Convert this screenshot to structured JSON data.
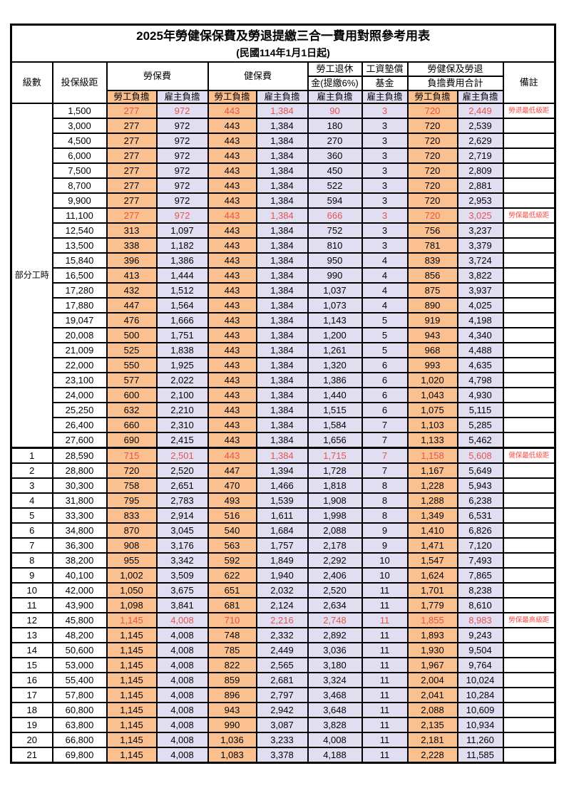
{
  "title": "2025年勞健保保費及勞退提繳三合一費用對照參考用表",
  "subtitle": "(民國114年1月1日起)",
  "colors": {
    "orange": "#FAC090",
    "lavender": "#E1DEF2",
    "red": "#E8534E",
    "remark_red": "#FF4B42",
    "border": "#000000"
  },
  "header": {
    "level": "級數",
    "bracket": "投保級距",
    "labor_insurance": "勞保費",
    "health_insurance": "健保費",
    "pension_line1": "勞工退休",
    "pension_line2": "金(提繳6%)",
    "wage_fund_line1": "工資墊償",
    "wage_fund_line2": "基金",
    "total_line1": "勞健保及勞退",
    "total_line2": "負擔費用合計",
    "remark": "備註",
    "employee_share": "勞工負擔",
    "employer_share": "雇主負擔"
  },
  "part_time_label": "部分工時",
  "rows": [
    {
      "level": null,
      "bracket": "1,500",
      "v": [
        "277",
        "972",
        "443",
        "1,384",
        "90",
        "3",
        "720",
        "2,449"
      ],
      "red": true,
      "bold": false,
      "remark": "勞退最低級距",
      "thick_top": false
    },
    {
      "level": null,
      "bracket": "3,000",
      "v": [
        "277",
        "972",
        "443",
        "1,384",
        "180",
        "3",
        "720",
        "2,539"
      ],
      "red": false,
      "bold": false,
      "remark": "",
      "thick_top": false
    },
    {
      "level": null,
      "bracket": "4,500",
      "v": [
        "277",
        "972",
        "443",
        "1,384",
        "270",
        "3",
        "720",
        "2,629"
      ],
      "red": false,
      "bold": false,
      "remark": "",
      "thick_top": false
    },
    {
      "level": null,
      "bracket": "6,000",
      "v": [
        "277",
        "972",
        "443",
        "1,384",
        "360",
        "3",
        "720",
        "2,719"
      ],
      "red": false,
      "bold": false,
      "remark": "",
      "thick_top": false
    },
    {
      "level": null,
      "bracket": "7,500",
      "v": [
        "277",
        "972",
        "443",
        "1,384",
        "450",
        "3",
        "720",
        "2,809"
      ],
      "red": false,
      "bold": false,
      "remark": "",
      "thick_top": false
    },
    {
      "level": null,
      "bracket": "8,700",
      "v": [
        "277",
        "972",
        "443",
        "1,384",
        "522",
        "3",
        "720",
        "2,881"
      ],
      "red": false,
      "bold": false,
      "remark": "",
      "thick_top": false
    },
    {
      "level": null,
      "bracket": "9,900",
      "v": [
        "277",
        "972",
        "443",
        "1,384",
        "594",
        "3",
        "720",
        "2,953"
      ],
      "red": false,
      "bold": false,
      "remark": "",
      "thick_top": false
    },
    {
      "level": null,
      "bracket": "11,100",
      "v": [
        "277",
        "972",
        "443",
        "1,384",
        "666",
        "3",
        "720",
        "3,025"
      ],
      "red": true,
      "bold": false,
      "remark": "勞保最低級距",
      "thick_top": false
    },
    {
      "level": null,
      "bracket": "12,540",
      "v": [
        "313",
        "1,097",
        "443",
        "1,384",
        "752",
        "3",
        "756",
        "3,237"
      ],
      "red": false,
      "bold": false,
      "remark": "",
      "thick_top": false
    },
    {
      "level": null,
      "bracket": "13,500",
      "v": [
        "338",
        "1,182",
        "443",
        "1,384",
        "810",
        "3",
        "781",
        "3,379"
      ],
      "red": false,
      "bold": false,
      "remark": "",
      "thick_top": false
    },
    {
      "level": null,
      "bracket": "15,840",
      "v": [
        "396",
        "1,386",
        "443",
        "1,384",
        "950",
        "4",
        "839",
        "3,724"
      ],
      "red": false,
      "bold": false,
      "remark": "",
      "thick_top": false
    },
    {
      "level": null,
      "bracket": "16,500",
      "v": [
        "413",
        "1,444",
        "443",
        "1,384",
        "990",
        "4",
        "856",
        "3,822"
      ],
      "red": false,
      "bold": false,
      "remark": "",
      "thick_top": false
    },
    {
      "level": null,
      "bracket": "17,280",
      "v": [
        "432",
        "1,512",
        "443",
        "1,384",
        "1,037",
        "4",
        "875",
        "3,937"
      ],
      "red": false,
      "bold": false,
      "remark": "",
      "thick_top": false
    },
    {
      "level": null,
      "bracket": "17,880",
      "v": [
        "447",
        "1,564",
        "443",
        "1,384",
        "1,073",
        "4",
        "890",
        "4,025"
      ],
      "red": false,
      "bold": false,
      "remark": "",
      "thick_top": false
    },
    {
      "level": null,
      "bracket": "19,047",
      "v": [
        "476",
        "1,666",
        "443",
        "1,384",
        "1,143",
        "5",
        "919",
        "4,198"
      ],
      "red": false,
      "bold": false,
      "remark": "",
      "thick_top": false
    },
    {
      "level": null,
      "bracket": "20,008",
      "v": [
        "500",
        "1,751",
        "443",
        "1,384",
        "1,200",
        "5",
        "943",
        "4,340"
      ],
      "red": false,
      "bold": false,
      "remark": "",
      "thick_top": false
    },
    {
      "level": null,
      "bracket": "21,009",
      "v": [
        "525",
        "1,838",
        "443",
        "1,384",
        "1,261",
        "5",
        "968",
        "4,488"
      ],
      "red": false,
      "bold": false,
      "remark": "",
      "thick_top": false
    },
    {
      "level": null,
      "bracket": "22,000",
      "v": [
        "550",
        "1,925",
        "443",
        "1,384",
        "1,320",
        "6",
        "993",
        "4,635"
      ],
      "red": false,
      "bold": false,
      "remark": "",
      "thick_top": false
    },
    {
      "level": null,
      "bracket": "23,100",
      "v": [
        "577",
        "2,022",
        "443",
        "1,384",
        "1,386",
        "6",
        "1,020",
        "4,798"
      ],
      "red": false,
      "bold": false,
      "remark": "",
      "thick_top": false
    },
    {
      "level": null,
      "bracket": "24,000",
      "v": [
        "600",
        "2,100",
        "443",
        "1,384",
        "1,440",
        "6",
        "1,043",
        "4,930"
      ],
      "red": false,
      "bold": false,
      "remark": "",
      "thick_top": false
    },
    {
      "level": null,
      "bracket": "25,250",
      "v": [
        "632",
        "2,210",
        "443",
        "1,384",
        "1,515",
        "6",
        "1,075",
        "5,115"
      ],
      "red": false,
      "bold": false,
      "remark": "",
      "thick_top": false
    },
    {
      "level": null,
      "bracket": "26,400",
      "v": [
        "660",
        "2,310",
        "443",
        "1,384",
        "1,584",
        "7",
        "1,103",
        "5,285"
      ],
      "red": false,
      "bold": false,
      "remark": "",
      "thick_top": false
    },
    {
      "level": null,
      "bracket": "27,600",
      "v": [
        "690",
        "2,415",
        "443",
        "1,384",
        "1,656",
        "7",
        "1,133",
        "5,462"
      ],
      "red": false,
      "bold": false,
      "remark": "",
      "thick_top": false
    },
    {
      "level": "1",
      "bracket": "28,590",
      "v": [
        "715",
        "2,501",
        "443",
        "1,384",
        "1,715",
        "7",
        "1,158",
        "5,608"
      ],
      "red": true,
      "bold": true,
      "remark": "健保最低級距",
      "thick_top": true
    },
    {
      "level": "2",
      "bracket": "28,800",
      "v": [
        "720",
        "2,520",
        "447",
        "1,394",
        "1,728",
        "7",
        "1,167",
        "5,649"
      ],
      "red": false,
      "bold": false,
      "remark": "",
      "thick_top": false
    },
    {
      "level": "3",
      "bracket": "30,300",
      "v": [
        "758",
        "2,651",
        "470",
        "1,466",
        "1,818",
        "8",
        "1,228",
        "5,943"
      ],
      "red": false,
      "bold": false,
      "remark": "",
      "thick_top": false
    },
    {
      "level": "4",
      "bracket": "31,800",
      "v": [
        "795",
        "2,783",
        "493",
        "1,539",
        "1,908",
        "8",
        "1,288",
        "6,238"
      ],
      "red": false,
      "bold": false,
      "remark": "",
      "thick_top": false
    },
    {
      "level": "5",
      "bracket": "33,300",
      "v": [
        "833",
        "2,914",
        "516",
        "1,611",
        "1,998",
        "8",
        "1,349",
        "6,531"
      ],
      "red": false,
      "bold": false,
      "remark": "",
      "thick_top": false
    },
    {
      "level": "6",
      "bracket": "34,800",
      "v": [
        "870",
        "3,045",
        "540",
        "1,684",
        "2,088",
        "9",
        "1,410",
        "6,826"
      ],
      "red": false,
      "bold": false,
      "remark": "",
      "thick_top": false
    },
    {
      "level": "7",
      "bracket": "36,300",
      "v": [
        "908",
        "3,176",
        "563",
        "1,757",
        "2,178",
        "9",
        "1,471",
        "7,120"
      ],
      "red": false,
      "bold": false,
      "remark": "",
      "thick_top": false
    },
    {
      "level": "8",
      "bracket": "38,200",
      "v": [
        "955",
        "3,342",
        "592",
        "1,849",
        "2,292",
        "10",
        "1,547",
        "7,493"
      ],
      "red": false,
      "bold": false,
      "remark": "",
      "thick_top": false
    },
    {
      "level": "9",
      "bracket": "40,100",
      "v": [
        "1,002",
        "3,509",
        "622",
        "1,940",
        "2,406",
        "10",
        "1,624",
        "7,865"
      ],
      "red": false,
      "bold": false,
      "remark": "",
      "thick_top": false
    },
    {
      "level": "10",
      "bracket": "42,000",
      "v": [
        "1,050",
        "3,675",
        "651",
        "2,032",
        "2,520",
        "11",
        "1,701",
        "8,238"
      ],
      "red": false,
      "bold": false,
      "remark": "",
      "thick_top": false
    },
    {
      "level": "11",
      "bracket": "43,900",
      "v": [
        "1,098",
        "3,841",
        "681",
        "2,124",
        "2,634",
        "11",
        "1,779",
        "8,610"
      ],
      "red": false,
      "bold": false,
      "remark": "",
      "thick_top": false
    },
    {
      "level": "12",
      "bracket": "45,800",
      "v": [
        "1,145",
        "4,008",
        "710",
        "2,216",
        "2,748",
        "11",
        "1,855",
        "8,983"
      ],
      "red": true,
      "bold": true,
      "remark": "勞保最高級距",
      "thick_top": false
    },
    {
      "level": "13",
      "bracket": "48,200",
      "v": [
        "1,145",
        "4,008",
        "748",
        "2,332",
        "2,892",
        "11",
        "1,893",
        "9,243"
      ],
      "red": false,
      "bold": false,
      "remark": "",
      "thick_top": false
    },
    {
      "level": "14",
      "bracket": "50,600",
      "v": [
        "1,145",
        "4,008",
        "785",
        "2,449",
        "3,036",
        "11",
        "1,930",
        "9,504"
      ],
      "red": false,
      "bold": false,
      "remark": "",
      "thick_top": false
    },
    {
      "level": "15",
      "bracket": "53,000",
      "v": [
        "1,145",
        "4,008",
        "822",
        "2,565",
        "3,180",
        "11",
        "1,967",
        "9,764"
      ],
      "red": false,
      "bold": false,
      "remark": "",
      "thick_top": false
    },
    {
      "level": "16",
      "bracket": "55,400",
      "v": [
        "1,145",
        "4,008",
        "859",
        "2,681",
        "3,324",
        "11",
        "2,004",
        "10,024"
      ],
      "red": false,
      "bold": false,
      "remark": "",
      "thick_top": false
    },
    {
      "level": "17",
      "bracket": "57,800",
      "v": [
        "1,145",
        "4,008",
        "896",
        "2,797",
        "3,468",
        "11",
        "2,041",
        "10,284"
      ],
      "red": false,
      "bold": false,
      "remark": "",
      "thick_top": false
    },
    {
      "level": "18",
      "bracket": "60,800",
      "v": [
        "1,145",
        "4,008",
        "943",
        "2,942",
        "3,648",
        "11",
        "2,088",
        "10,609"
      ],
      "red": false,
      "bold": false,
      "remark": "",
      "thick_top": false
    },
    {
      "level": "19",
      "bracket": "63,800",
      "v": [
        "1,145",
        "4,008",
        "990",
        "3,087",
        "3,828",
        "11",
        "2,135",
        "10,934"
      ],
      "red": false,
      "bold": false,
      "remark": "",
      "thick_top": false
    },
    {
      "level": "20",
      "bracket": "66,800",
      "v": [
        "1,145",
        "4,008",
        "1,036",
        "3,233",
        "4,008",
        "11",
        "2,181",
        "11,260"
      ],
      "red": false,
      "bold": false,
      "remark": "",
      "thick_top": false
    },
    {
      "level": "21",
      "bracket": "69,800",
      "v": [
        "1,145",
        "4,008",
        "1,083",
        "3,378",
        "4,188",
        "11",
        "2,228",
        "11,585"
      ],
      "red": false,
      "bold": false,
      "remark": "",
      "thick_top": false
    }
  ]
}
